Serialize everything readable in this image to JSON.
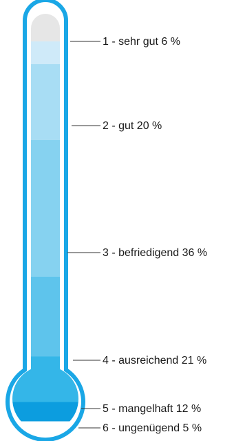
{
  "chart_data": {
    "type": "bar",
    "subtype": "stacked-thermometer",
    "categories": [
      "1 - sehr gut",
      "2 - gut",
      "3 - befriedigend",
      "4 - ausreichend",
      "5 - mangelhaft",
      "6 - ungenügend"
    ],
    "values": [
      6,
      20,
      36,
      21,
      12,
      5
    ],
    "labels": [
      "1 - sehr gut 6 %",
      "2 - gut 20 %",
      "3 - befriedigend 36 %",
      "4 - ausreichend 21 %",
      "5 - mangelhaft 12 %",
      "6 - ungenügend 5 %"
    ],
    "unit": "%",
    "colors": [
      "#cfeaf9",
      "#a8ddf4",
      "#86d2f0",
      "#5ec4ec",
      "#34b6e8",
      "#0c9ddf"
    ],
    "top_cap_color": "#e6e6e6",
    "outline_color": "#1aa7e6"
  }
}
